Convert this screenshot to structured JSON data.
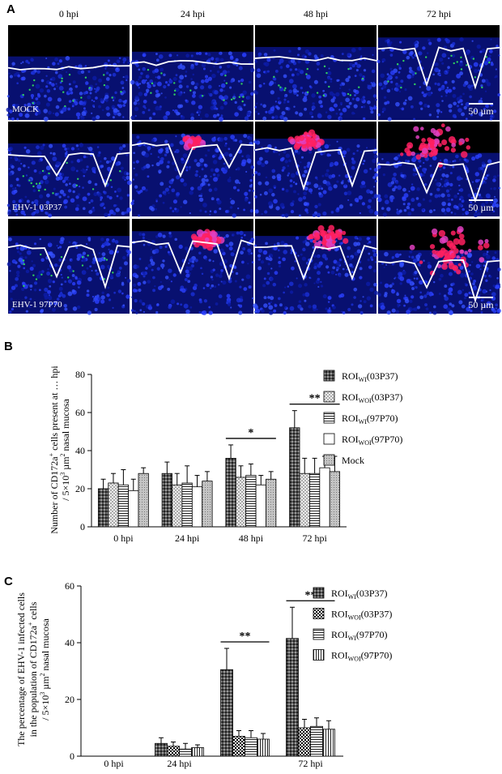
{
  "panel_a": {
    "label": "A",
    "columns": [
      "0 hpi",
      "24 hpi",
      "48 hpi",
      "72 hpi"
    ],
    "rows": [
      "MOCK",
      "EHV-1 03P37",
      "EHV-1 97P70"
    ],
    "scale_bar": "50 µm"
  },
  "chart_data": [
    {
      "type": "bar",
      "label": "B",
      "ylabel": [
        [
          "Number of  CD172a",
          "+",
          " cells present at … hpi"
        ],
        [
          "/ 5×10",
          "3",
          " µm",
          "2",
          " nasal mucosa"
        ]
      ],
      "categories": [
        "0 hpi",
        "24 hpi",
        "48 hpi",
        "72 hpi"
      ],
      "series": [
        {
          "name": [
            "ROI",
            "WI",
            "(03P37)"
          ],
          "pattern": "dense-check",
          "values": [
            20,
            28,
            36,
            52
          ],
          "errors": [
            5,
            6,
            7,
            9
          ]
        },
        {
          "name": [
            "ROI",
            "WOI",
            "(03P37)"
          ],
          "pattern": "light-check",
          "values": [
            23,
            22,
            26,
            28
          ],
          "errors": [
            5,
            6,
            6,
            8
          ]
        },
        {
          "name": [
            "ROI",
            "WI",
            "(97P70)"
          ],
          "pattern": "hlines",
          "values": [
            22,
            23,
            27,
            28
          ],
          "errors": [
            8,
            9,
            6,
            8
          ]
        },
        {
          "name": [
            "ROI",
            "WOI",
            "(97P70)"
          ],
          "pattern": "plain",
          "values": [
            19,
            21,
            22,
            31
          ],
          "errors": [
            6,
            6,
            5,
            6
          ]
        },
        {
          "name": [
            "Mock"
          ],
          "pattern": "dots",
          "values": [
            28,
            24,
            25,
            29
          ],
          "errors": [
            3,
            5,
            4,
            8
          ]
        }
      ],
      "ylim": [
        0,
        80
      ],
      "yticks": [
        0,
        20,
        40,
        60,
        80
      ],
      "legend": "right",
      "annotations": [
        {
          "text": "*",
          "category": 2
        },
        {
          "text": "**",
          "category": 3
        }
      ]
    },
    {
      "type": "bar",
      "label": "C",
      "ylabel": [
        [
          "The percentage of EHV-1 infected cells"
        ],
        [
          "in the population of  CD172a",
          "+",
          " cells"
        ],
        [
          "/ 5×10",
          "3",
          " µm",
          "2",
          " nasal mucosa"
        ]
      ],
      "categories": [
        "0 hpi",
        "24 hpi",
        null,
        "72 hpi"
      ],
      "series": [
        {
          "name": [
            "ROI",
            "WI",
            "(03P37)"
          ],
          "pattern": "dense-check",
          "values": [
            0,
            4.5,
            30.5,
            41.5
          ],
          "errors": [
            0,
            2,
            7.5,
            11
          ]
        },
        {
          "name": [
            "ROI",
            "WOI",
            "(03P37)"
          ],
          "pattern": "black-check",
          "values": [
            0,
            3.5,
            7,
            10
          ],
          "errors": [
            0,
            1.5,
            2,
            3
          ]
        },
        {
          "name": [
            "ROI",
            "WI",
            "(97P70)"
          ],
          "pattern": "hlines",
          "values": [
            0,
            2.5,
            6.5,
            10.5
          ],
          "errors": [
            0,
            2,
            2.5,
            3
          ]
        },
        {
          "name": [
            "ROI",
            "WOI",
            "(97P70)"
          ],
          "pattern": "vlines",
          "values": [
            0,
            3,
            6,
            9.5
          ],
          "errors": [
            0,
            1,
            2,
            3
          ]
        }
      ],
      "ylim": [
        0,
        60
      ],
      "yticks": [
        0,
        20,
        40,
        60
      ],
      "legend": "right",
      "annotations": [
        {
          "text": "**",
          "category": 2
        },
        {
          "text": "**",
          "category": 3
        }
      ]
    }
  ]
}
